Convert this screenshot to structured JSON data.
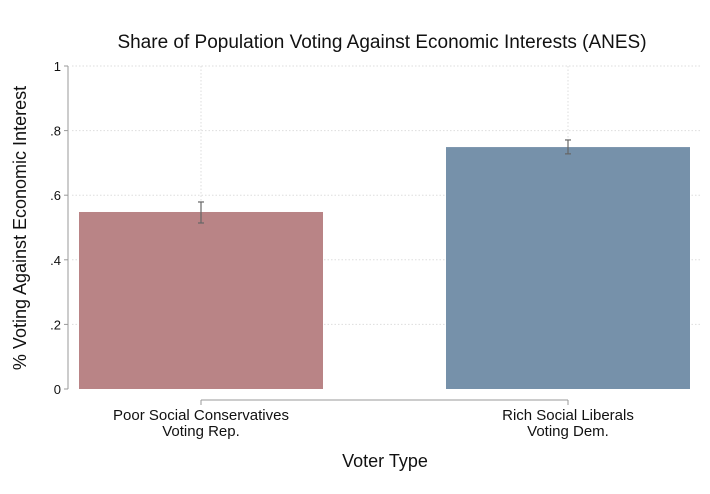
{
  "chart_data": {
    "type": "bar",
    "title": "Share of Population Voting Against Economic Interests (ANES)",
    "xlabel": "Voter Type",
    "ylabel": "% Voting Against Economic Interest",
    "ylim": [
      0,
      1
    ],
    "yticks": [
      0,
      0.2,
      0.4,
      0.6,
      0.8,
      1
    ],
    "ytick_labels": [
      "0",
      ".2",
      ".4",
      ".6",
      ".8",
      "1"
    ],
    "grid": true,
    "categories": [
      [
        "Poor Social Conservatives",
        "Voting Rep."
      ],
      [
        "Rich Social Liberals",
        "Voting Dem."
      ]
    ],
    "values": [
      0.548,
      0.749
    ],
    "error_low": [
      0.514,
      0.728
    ],
    "error_high": [
      0.579,
      0.771
    ],
    "colors": [
      "#b98486",
      "#7691aa"
    ]
  }
}
